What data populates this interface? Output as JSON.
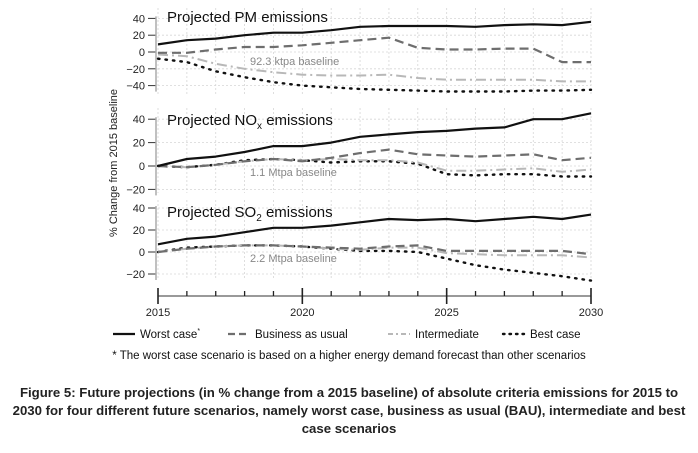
{
  "chart_data": {
    "type": "line",
    "xlabel": "",
    "ylabel": "% Change from 2015 baseline",
    "x": [
      2015,
      2016,
      2017,
      2018,
      2019,
      2020,
      2021,
      2022,
      2023,
      2024,
      2025,
      2026,
      2027,
      2028,
      2029,
      2030
    ],
    "xticks": [
      "2015",
      "2020",
      "2025",
      "2030"
    ],
    "grid": true,
    "legend": {
      "placement": "bottom",
      "entries": [
        {
          "key": "worst",
          "label": "Worst case",
          "marker": "*",
          "style": "solid",
          "color": "#111111"
        },
        {
          "key": "bau",
          "label": "Business as usual",
          "style": "dashed",
          "color": "#6e6e6e"
        },
        {
          "key": "intermediate",
          "label": "Intermediate",
          "style": "dashdot",
          "color": "#b5b5b5"
        },
        {
          "key": "best",
          "label": "Best case",
          "style": "dotted",
          "color": "#111111"
        }
      ]
    },
    "panels": [
      {
        "title": "Projected PM emissions",
        "title_sub": "",
        "title_tail": "",
        "baseline_label": "92.3 ktpa baseline",
        "ylim": [
          -50,
          45
        ],
        "yticks": [
          40,
          20,
          0,
          -20,
          -40
        ],
        "series": [
          {
            "name": "Worst case",
            "key": "worst",
            "values": [
              9,
              14,
              16,
              20,
              23,
              23,
              26,
              30,
              31,
              31,
              31,
              30,
              32,
              33,
              32,
              36
            ]
          },
          {
            "name": "Business as usual",
            "key": "bau",
            "values": [
              -1,
              -1,
              3,
              6,
              6,
              8,
              11,
              14,
              17,
              5,
              3,
              3,
              4,
              4,
              -12,
              -12
            ]
          },
          {
            "name": "Intermediate",
            "key": "intermediate",
            "values": [
              -3,
              -5,
              -14,
              -20,
              -24,
              -27,
              -28,
              -28,
              -27,
              -31,
              -33,
              -33,
              -33,
              -33,
              -35,
              -35
            ]
          },
          {
            "name": "Best case",
            "key": "best",
            "values": [
              -8,
              -12,
              -23,
              -30,
              -36,
              -40,
              -42,
              -44,
              -45,
              -46,
              -47,
              -47,
              -47,
              -46,
              -46,
              -45
            ]
          }
        ]
      },
      {
        "title": "Projected NO",
        "title_sub": "x",
        "title_tail": " emissions",
        "baseline_label": "1.1 Mtpa baseline",
        "ylim": [
          -22,
          47
        ],
        "yticks": [
          40,
          20,
          0,
          -20
        ],
        "series": [
          {
            "name": "Worst case",
            "key": "worst",
            "values": [
              0,
              6,
              8,
              12,
              17,
              17,
              20,
              25,
              27,
              29,
              30,
              32,
              33,
              40,
              40,
              45
            ]
          },
          {
            "name": "Business as usual",
            "key": "bau",
            "values": [
              0,
              -1,
              1,
              4,
              6,
              4,
              7,
              11,
              14,
              10,
              9,
              8,
              9,
              10,
              5,
              7
            ]
          },
          {
            "name": "Intermediate",
            "key": "intermediate",
            "values": [
              0,
              -1,
              1,
              4,
              6,
              5,
              6,
              5,
              5,
              3,
              -4,
              -4,
              -3,
              -2,
              -5,
              -3
            ]
          },
          {
            "name": "Best case",
            "key": "best",
            "values": [
              0,
              -1,
              1,
              5,
              6,
              5,
              3,
              4,
              4,
              2,
              -7,
              -8,
              -7,
              -7,
              -9,
              -9
            ]
          }
        ]
      },
      {
        "title": "Projected SO",
        "title_sub": "2",
        "title_tail": " emissions",
        "baseline_label": "2.2 Mtpa baseline",
        "ylim": [
          -28,
          45
        ],
        "yticks": [
          40,
          20,
          0,
          -20
        ],
        "series": [
          {
            "name": "Worst case",
            "key": "worst",
            "values": [
              7,
              12,
              14,
              18,
              22,
              22,
              24,
              27,
              30,
              29,
              30,
              28,
              30,
              32,
              30,
              34
            ]
          },
          {
            "name": "Business as usual",
            "key": "bau",
            "values": [
              0,
              3,
              5,
              6,
              6,
              5,
              4,
              3,
              5,
              6,
              1,
              1,
              1,
              1,
              1,
              -2
            ]
          },
          {
            "name": "Intermediate",
            "key": "intermediate",
            "values": [
              0,
              3,
              5,
              6,
              6,
              5,
              3,
              2,
              4,
              4,
              -1,
              -2,
              -3,
              -3,
              -3,
              -5
            ]
          },
          {
            "name": "Best case",
            "key": "best",
            "values": [
              0,
              4,
              5,
              6,
              6,
              5,
              3,
              1,
              1,
              0,
              -6,
              -12,
              -16,
              -19,
              -22,
              -26
            ]
          }
        ]
      }
    ]
  },
  "footnote": "* The worst case scenario is based on a higher energy demand forecast than other scenarios",
  "caption": "Figure 5: Future projections (in % change from a 2015 baseline) of absolute criteria emissions for 2015 to 2030 for four different future scenarios, namely worst case, business as usual (BAU), intermediate and best case scenarios"
}
